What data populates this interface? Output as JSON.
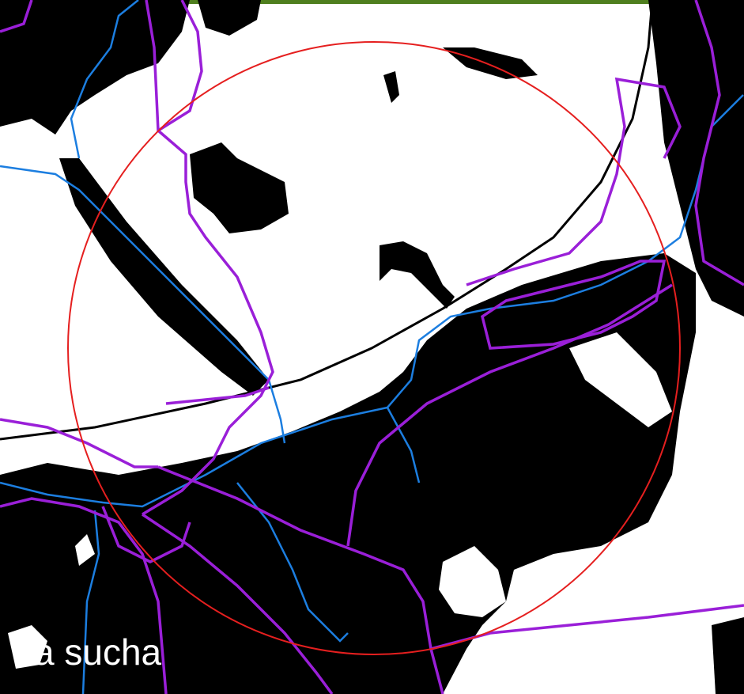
{
  "caption": "za sucha",
  "colors": {
    "frame_bar": "#4f7f1e",
    "background": "#ffffff",
    "built_area": "#000000",
    "road": "#9a1fd8",
    "stream": "#1c7ee0",
    "buffer_circle": "#e51f1f",
    "caption_text": "#ffffff"
  }
}
